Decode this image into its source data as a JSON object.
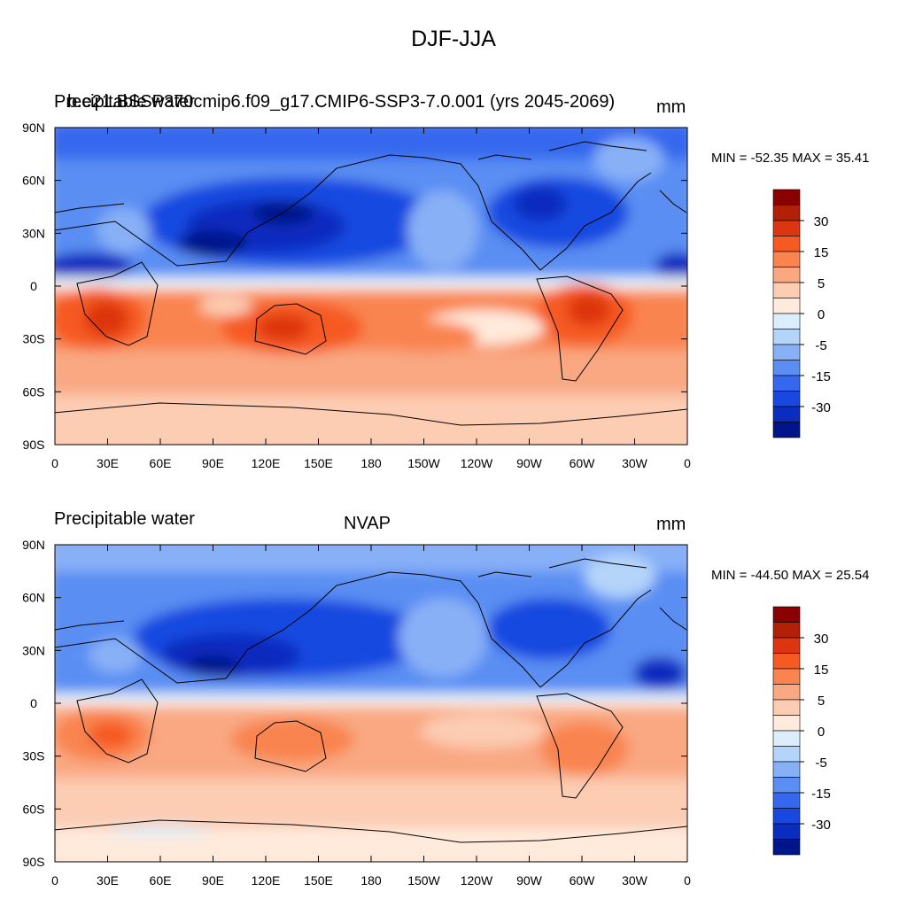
{
  "figure": {
    "title": "DJF-JJA"
  },
  "colorbar": {
    "levels": [
      -40,
      -35,
      -30,
      -25,
      -20,
      -15,
      -10,
      -5,
      0,
      5,
      10,
      15,
      20,
      25,
      30,
      35
    ],
    "labels": [
      "30",
      "15",
      "5",
      "0",
      "-5",
      "-15",
      "-30"
    ],
    "colors": [
      "#8b0000",
      "#b22008",
      "#dd3510",
      "#f65a22",
      "#f9844f",
      "#f9a882",
      "#fcccb3",
      "#ffeadb",
      "#dceefc",
      "#b4d4fa",
      "#88b0f7",
      "#5a8ef3",
      "#3568ee",
      "#1848e0",
      "#0a2cbf",
      "#00158a"
    ]
  },
  "panels": [
    {
      "left_label": "Precipitable water",
      "center_label": "b.e21.BSSP370cmip6.f09_g17.CMIP6-SSP3-7.0.001 (yrs 2045-2069)",
      "right_label": "mm",
      "minmax": "MIN = -52.35 MAX =  35.41"
    },
    {
      "left_label": "Precipitable water",
      "center_label": "NVAP",
      "right_label": "mm",
      "minmax": "MIN = -44.50 MAX =  25.54"
    }
  ],
  "axes": {
    "x_ticks": [
      "0",
      "30E",
      "60E",
      "90E",
      "120E",
      "150E",
      "180",
      "150W",
      "120W",
      "90W",
      "60W",
      "30W",
      "0"
    ],
    "y_ticks": [
      "90N",
      "60N",
      "30N",
      "0",
      "30S",
      "60S",
      "90S"
    ]
  }
}
